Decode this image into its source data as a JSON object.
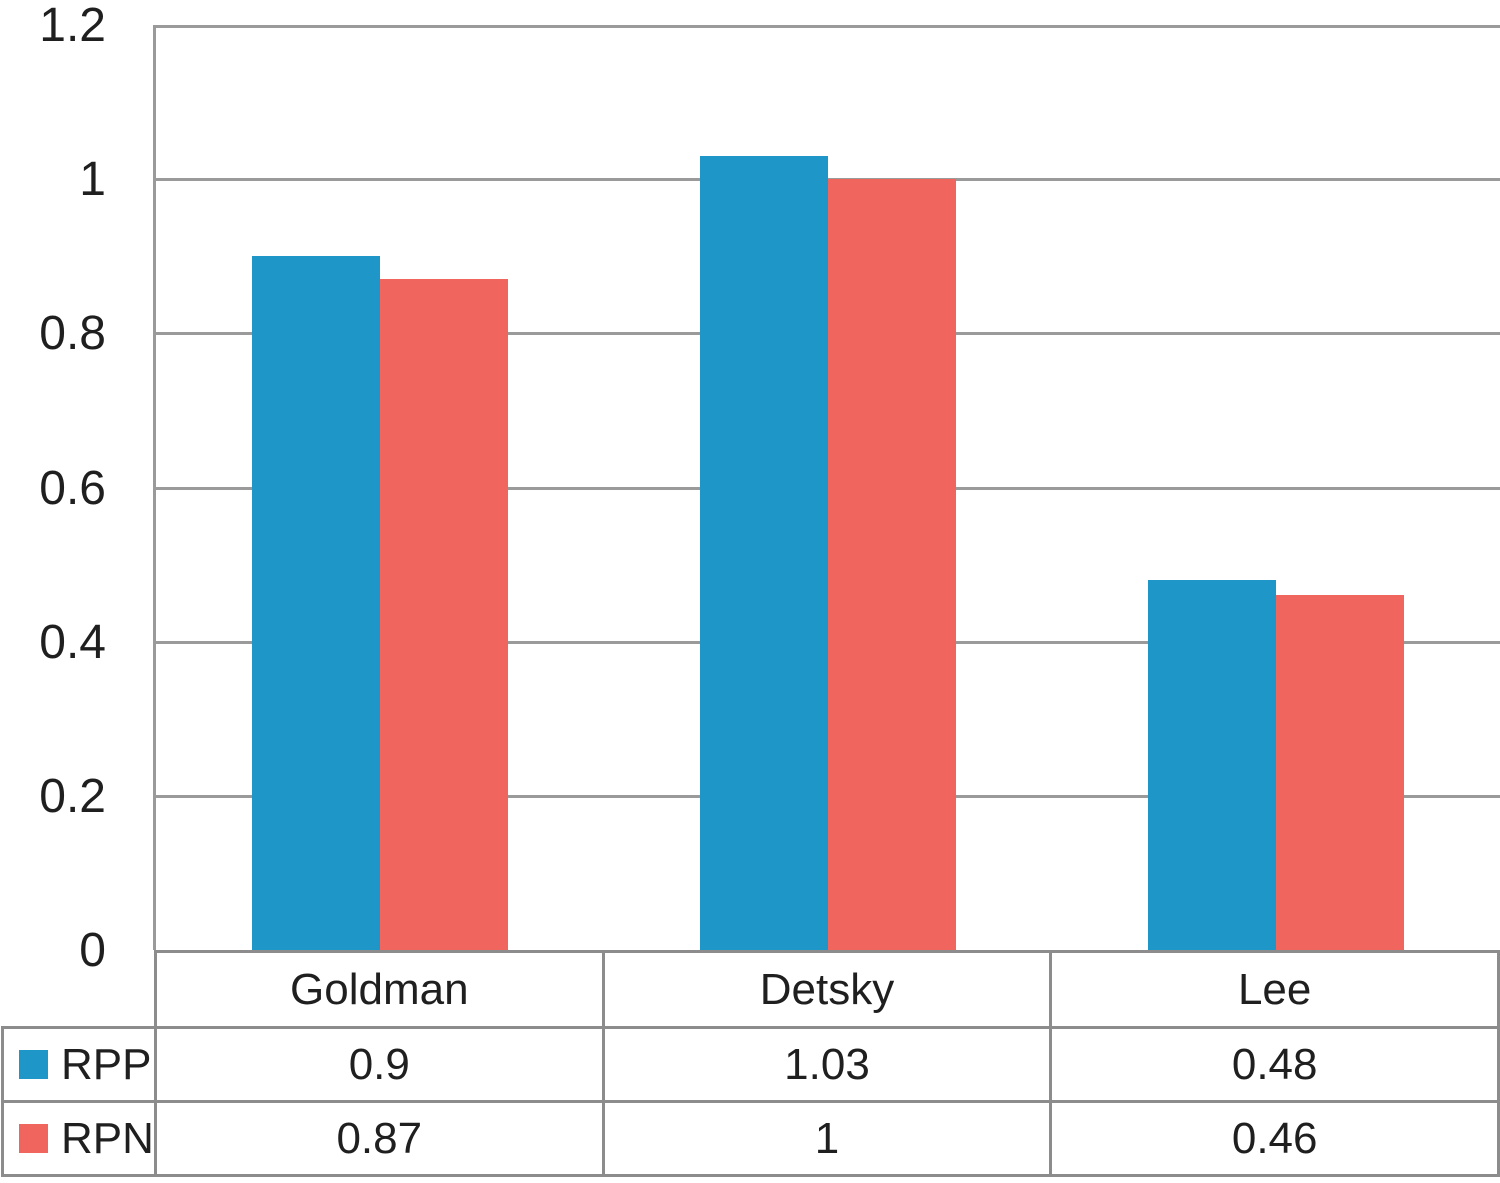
{
  "chart_data": {
    "type": "bar",
    "categories": [
      "Goldman",
      "Detsky",
      "Lee"
    ],
    "series": [
      {
        "name": "RPP",
        "color": "#1E96C8",
        "values": [
          0.9,
          1.03,
          0.48
        ]
      },
      {
        "name": "RPN",
        "color": "#F0655D",
        "values": [
          0.87,
          1,
          0.46
        ]
      }
    ],
    "title": "",
    "xlabel": "",
    "ylabel": "",
    "ylim": [
      0,
      1.2
    ],
    "yticks": [
      0,
      0.2,
      0.4,
      0.6,
      0.8,
      1,
      1.2
    ],
    "ytick_labels": [
      "0",
      "0.2",
      "0.4",
      "0.6",
      "0.8",
      "1",
      "1.2"
    ],
    "grid": true,
    "legend_position": "table-left",
    "data_table_shown": true
  },
  "colors": {
    "grid": "#9a9a9a",
    "table_border": "#8c8c8c",
    "text": "#1f1f1f",
    "background": "#ffffff"
  }
}
